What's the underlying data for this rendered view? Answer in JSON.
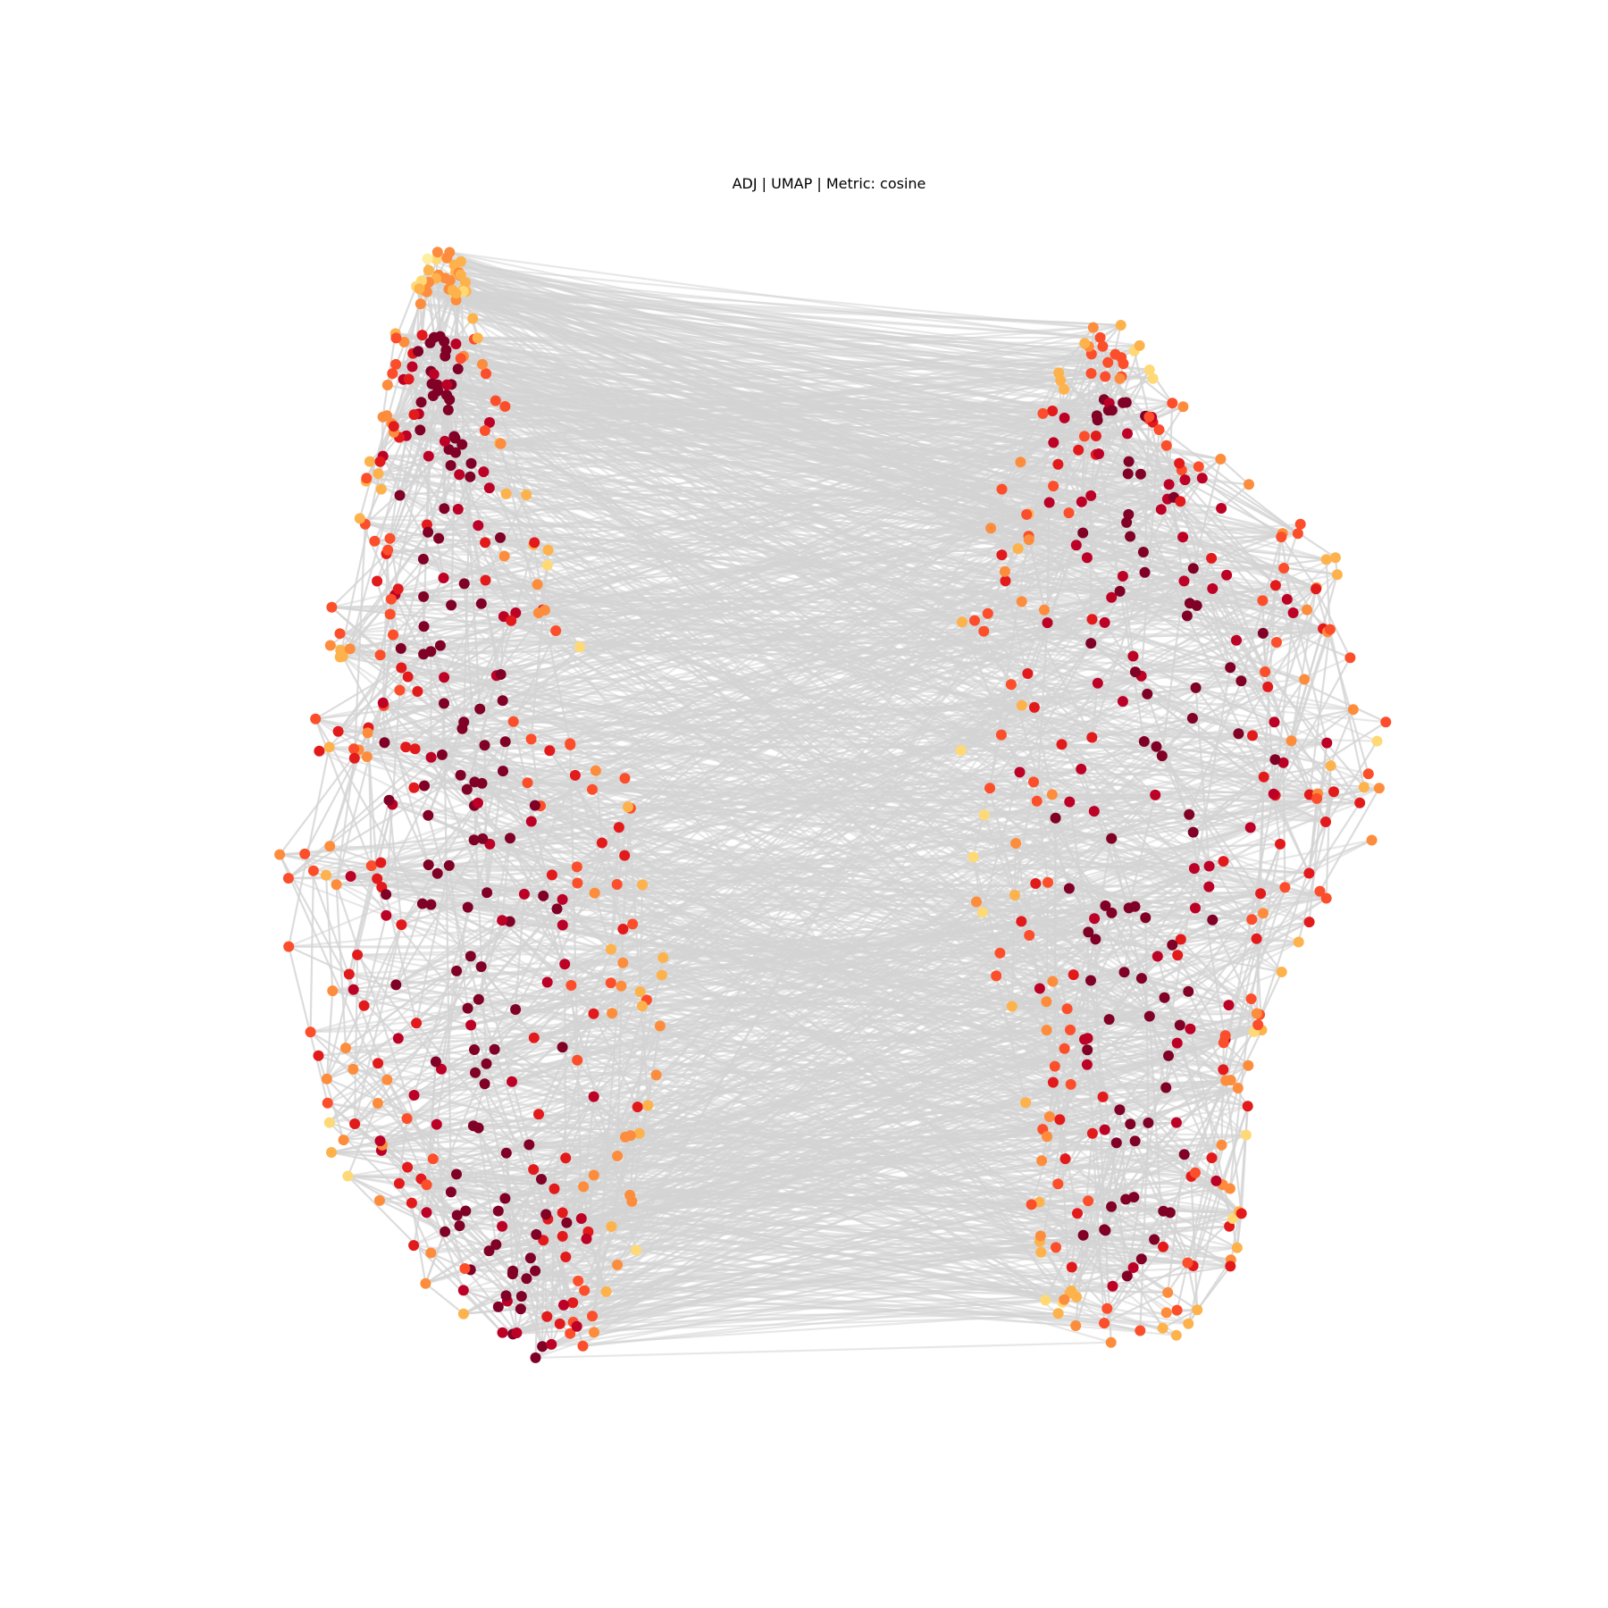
{
  "title": "ADJ | UMAP | Metric: cosine",
  "chart_data": {
    "type": "graph-embedding",
    "title": "ADJ | UMAP | Metric: cosine",
    "axes_visible": false,
    "grid": false,
    "legend": "none",
    "edge_color": "#d3d3d3",
    "colormap": "YlOrRd",
    "colormap_stops": [
      "#ffeda0",
      "#fed976",
      "#feb24c",
      "#fd8d3c",
      "#fc4e2a",
      "#e31a1c",
      "#bd0026",
      "#800026"
    ],
    "clusters": [
      {
        "name": "",
        "node_count": 420
      },
      {
        "name": "",
        "node_count": 360
      }
    ]
  }
}
